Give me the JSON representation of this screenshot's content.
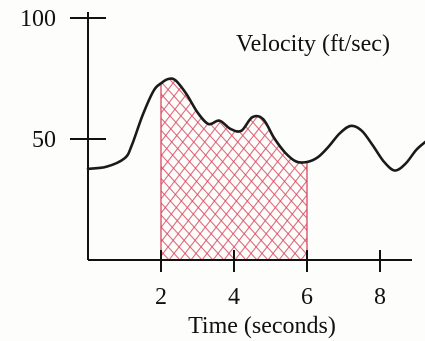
{
  "chart_data": {
    "type": "line",
    "title": "",
    "ylabel": "Velocity (ft/sec)",
    "xlabel": "Time (seconds)",
    "xlim": [
      0,
      9.4
    ],
    "ylim": [
      0,
      100
    ],
    "x_ticks": [
      {
        "value": 2,
        "label": "2"
      },
      {
        "value": 4,
        "label": "4"
      },
      {
        "value": 6,
        "label": "6"
      },
      {
        "value": 8,
        "label": "8"
      }
    ],
    "y_ticks": [
      {
        "value": 50,
        "label": "50"
      },
      {
        "value": 100,
        "label": "100"
      }
    ],
    "grid": false,
    "series": [
      {
        "color": "#1a1a1a",
        "x": [
          0.0,
          0.5,
          1.0,
          1.2,
          1.5,
          1.8,
          2.0,
          2.2,
          2.4,
          2.7,
          3.0,
          3.3,
          3.6,
          3.9,
          4.2,
          4.5,
          4.8,
          5.1,
          5.4,
          5.7,
          6.0,
          6.3,
          6.6,
          6.9,
          7.2,
          7.5,
          7.8,
          8.1,
          8.4,
          8.7,
          9.0,
          9.3
        ],
        "values": [
          37.7,
          38.5,
          42,
          47.4,
          60,
          70,
          73,
          74.8,
          74.2,
          68.5,
          61,
          56.2,
          57.6,
          54.2,
          53.4,
          59,
          58.2,
          50.4,
          44.4,
          40.7,
          40.5,
          42.5,
          47,
          52.4,
          55.4,
          53.4,
          47.4,
          40.8,
          37,
          39.8,
          45.6,
          49.5
        ]
      }
    ],
    "shaded_region": {
      "x_start": 2,
      "x_end": 6,
      "color": "#d8485f"
    }
  }
}
